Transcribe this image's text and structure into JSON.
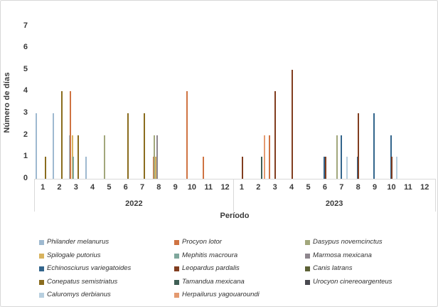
{
  "chart": {
    "y_axis_title": "Número de días",
    "x_axis_title": "Período"
  },
  "chart_data": {
    "type": "bar",
    "title": "",
    "ylabel": "Número de días",
    "xlabel": "Período",
    "ylim": [
      0,
      7
    ],
    "y_ticks": [
      0,
      1,
      2,
      3,
      4,
      5,
      6,
      7
    ],
    "grid": false,
    "legend_position": "bottom",
    "groups": [
      {
        "year": "2022",
        "month_labels": [
          "1",
          "2",
          "3",
          "4",
          "5",
          "6",
          "7",
          "8",
          "9",
          "10",
          "11",
          "12"
        ]
      },
      {
        "year": "2023",
        "month_labels": [
          "1",
          "2",
          "3",
          "4",
          "5",
          "6",
          "7",
          "8",
          "9",
          "10",
          "11",
          "12"
        ]
      }
    ],
    "series": [
      {
        "name": "Philander melanurus",
        "color": "#9eb9d0",
        "values": {
          "2022": {
            "1": 3,
            "2": 3,
            "3": 2,
            "4": 1
          },
          "2023": {}
        }
      },
      {
        "name": "Procyon lotor",
        "color": "#cf7342",
        "values": {
          "2022": {
            "3": 4,
            "8": 1,
            "10": 4,
            "11": 1
          },
          "2023": {
            "3": 2
          }
        }
      },
      {
        "name": "Dasypus novemcinctus",
        "color": "#a2a77c",
        "values": {
          "2022": {
            "5": 2,
            "8": 2
          },
          "2023": {
            "7": 2
          }
        }
      },
      {
        "name": "Spilogale putorius",
        "color": "#d8b35e",
        "values": {
          "2022": {
            "3": 2,
            "8": 1
          },
          "2023": {}
        }
      },
      {
        "name": "Mephitis macroura",
        "color": "#7fa79c",
        "values": {
          "2022": {
            "3": 1
          },
          "2023": {}
        }
      },
      {
        "name": "Marmosa mexicana",
        "color": "#8e868e",
        "values": {
          "2022": {
            "8": 2
          },
          "2023": {}
        }
      },
      {
        "name": "Echinosciurus variegatoides",
        "color": "#33658c",
        "values": {
          "2022": {},
          "2023": {
            "6": 1,
            "7": 2,
            "8": 1,
            "9": 3,
            "10": 2
          }
        }
      },
      {
        "name": "Leopardus pardalis",
        "color": "#813d1f",
        "values": {
          "2022": {},
          "2023": {
            "1": 1,
            "3": 4,
            "4": 5,
            "6": 1,
            "8": 3,
            "10": 1
          }
        }
      },
      {
        "name": "Canis latrans",
        "color": "#5c6136",
        "values": {
          "2022": {},
          "2023": {}
        }
      },
      {
        "name": "Conepatus semistriatus",
        "color": "#8a6c1e",
        "values": {
          "2022": {
            "1": 1,
            "2": 4,
            "3": 2,
            "6": 3,
            "7": 3
          },
          "2023": {}
        }
      },
      {
        "name": "Tamandua mexicana",
        "color": "#3f5f55",
        "values": {
          "2022": {},
          "2023": {
            "2": 1
          }
        }
      },
      {
        "name": "Urocyon cinereoargenteus",
        "color": "#4a4a50",
        "values": {
          "2022": {},
          "2023": {}
        }
      },
      {
        "name": "Caluromys derbianus",
        "color": "#b7cfdf",
        "values": {
          "2022": {},
          "2023": {
            "7": 1,
            "10": 1
          }
        }
      },
      {
        "name": "Herpailurus yagouaroundi",
        "color": "#e49a70",
        "values": {
          "2022": {},
          "2023": {
            "2": 2
          }
        }
      }
    ]
  }
}
